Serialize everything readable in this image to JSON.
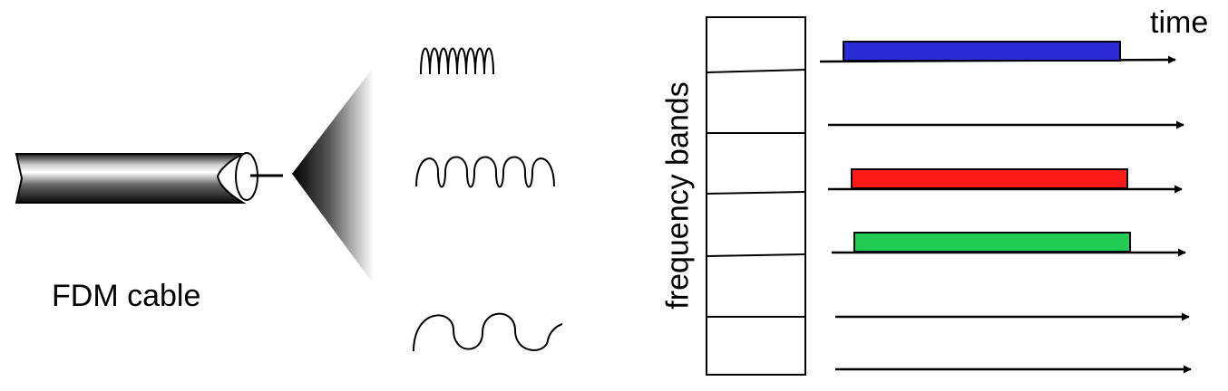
{
  "labels": {
    "cable": "FDM cable",
    "time_axis": "time",
    "frequency_axis": "frequency bands"
  },
  "colors": {
    "background": "#ffffff",
    "stroke": "#000000",
    "band_blue": "#2a2ad6",
    "band_red": "#ff1a1a",
    "band_green": "#22cc55"
  },
  "icons": [
    "coaxial-cable-icon",
    "spread-cone",
    "high-frequency-wave",
    "medium-frequency-wave",
    "low-frequency-wave"
  ],
  "frequency_bands": {
    "count": 6,
    "channels": [
      {
        "band": 1,
        "color": "blue",
        "active": true
      },
      {
        "band": 2,
        "active": false
      },
      {
        "band": 3,
        "color": "red",
        "active": true
      },
      {
        "band": 4,
        "color": "green",
        "active": true
      },
      {
        "band": 5,
        "active": false
      },
      {
        "band": 6,
        "active": false
      }
    ]
  }
}
